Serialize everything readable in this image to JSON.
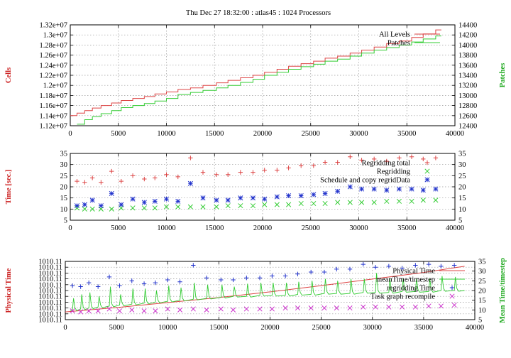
{
  "title": "Thu Dec 27 18:32:00 : atlas45 : 1024 Processors",
  "colors": {
    "red": "#dd4444",
    "green": "#33cc33",
    "blue": "#2233cc",
    "magenta": "#cc33cc",
    "grid": "#9a9a9a",
    "red_label": "#cc2222",
    "green_label": "#22aa22"
  },
  "chart_data": [
    {
      "type": "line",
      "xlabel": "",
      "ylabel_left": "Cells",
      "ylabel_right": "Patches",
      "xlim": [
        0,
        40000
      ],
      "ylim_left": [
        11200000,
        13200000
      ],
      "ylim_right": [
        12400,
        14400
      ],
      "grid": true,
      "legend_position": "top-right",
      "x_ticks": [
        "0",
        "5000",
        "10000",
        "15000",
        "20000",
        "25000",
        "30000",
        "35000",
        "40000"
      ],
      "y_ticks_left": [
        "1.12e+07",
        "1.14e+07",
        "1.16e+07",
        "1.18e+07",
        "1.2e+07",
        "1.22e+07",
        "1.24e+07",
        "1.26e+07",
        "1.28e+07",
        "1.3e+07",
        "1.32e+07"
      ],
      "y_ticks_right": [
        "12400",
        "12600",
        "12800",
        "13000",
        "13200",
        "13400",
        "13600",
        "13800",
        "14000",
        "14200",
        "14400"
      ],
      "series": [
        {
          "name": "All Levels",
          "axis": "left",
          "color": "red",
          "style": "step",
          "x": [
            0,
            700,
            1500,
            2300,
            3200,
            4300,
            5300,
            6500,
            7700,
            8800,
            10000,
            11200,
            12500,
            13800,
            15200,
            16400,
            17700,
            19000,
            20200,
            21500,
            22700,
            24000,
            25300,
            26500,
            27800,
            29100,
            30300,
            31600,
            32900,
            34200,
            35500,
            36700,
            38000
          ],
          "y": [
            11400000,
            11450000,
            11500000,
            11550000,
            11600000,
            11650000,
            11700000,
            11740000,
            11780000,
            11830000,
            11870000,
            11920000,
            11950000,
            12000000,
            12050000,
            12100000,
            12150000,
            12200000,
            12260000,
            12320000,
            12380000,
            12430000,
            12480000,
            12540000,
            12580000,
            12640000,
            12700000,
            12760000,
            12830000,
            12880000,
            12950000,
            13020000,
            13100000
          ]
        },
        {
          "name": "Patches",
          "axis": "right",
          "color": "green",
          "style": "step",
          "x": [
            700,
            1500,
            2300,
            3200,
            4300,
            5300,
            6500,
            7700,
            8800,
            10000,
            11200,
            12500,
            13800,
            15200,
            16400,
            17700,
            19000,
            20200,
            21500,
            22700,
            24000,
            25300,
            26500,
            27800,
            29100,
            30300,
            31600,
            32900,
            34200,
            35500,
            36700,
            38000
          ],
          "y": [
            12430,
            12520,
            12580,
            12640,
            12700,
            12760,
            12800,
            12840,
            12890,
            12940,
            13020,
            13060,
            13100,
            13150,
            13200,
            13260,
            13320,
            13400,
            13460,
            13520,
            13570,
            13620,
            13680,
            13720,
            13780,
            13840,
            13900,
            13950,
            14000,
            14060,
            14120,
            14180
          ]
        }
      ]
    },
    {
      "type": "scatter",
      "xlabel": "",
      "ylabel_left": "Time [sec.]",
      "xlim": [
        0,
        40000
      ],
      "ylim_left": [
        5,
        35
      ],
      "ylim_right": [
        5,
        35
      ],
      "grid": true,
      "legend_position": "top-right",
      "x_ticks": [
        "0",
        "5000",
        "10000",
        "15000",
        "20000",
        "25000",
        "30000",
        "35000",
        "40000"
      ],
      "y_ticks_left": [
        "5",
        "10",
        "15",
        "20",
        "25",
        "30",
        "35"
      ],
      "y_ticks_right": [
        "5",
        "10",
        "15",
        "20",
        "25",
        "30",
        "35"
      ],
      "series": [
        {
          "name": "Regridding total",
          "color": "red",
          "marker": "plus",
          "x": [
            700,
            1500,
            2300,
            3200,
            4300,
            5300,
            6500,
            7700,
            8800,
            10000,
            11200,
            12500,
            13800,
            15200,
            16400,
            17700,
            19000,
            20200,
            21500,
            22700,
            24000,
            25300,
            26500,
            27800,
            29100,
            30300,
            31600,
            32900,
            34200,
            35500,
            36700,
            38000
          ],
          "y": [
            22.5,
            22.0,
            24.0,
            22.0,
            27.0,
            22.5,
            25.0,
            23.5,
            24.0,
            25.5,
            24.5,
            33.0,
            26.5,
            25.5,
            25.5,
            26.5,
            26.5,
            27.5,
            27.5,
            28.5,
            29.5,
            29.5,
            31.0,
            31.0,
            33.5,
            32.0,
            32.5,
            31.5,
            33.0,
            33.5,
            32.5,
            33.0
          ]
        },
        {
          "name": "Regridding",
          "color": "green",
          "marker": "cross",
          "x": [
            700,
            1500,
            2300,
            3200,
            4300,
            5300,
            6500,
            7700,
            8800,
            10000,
            11200,
            12500,
            13800,
            15200,
            16400,
            17700,
            19000,
            20200,
            21500,
            22700,
            24000,
            25300,
            26500,
            27800,
            29100,
            30300,
            31600,
            32900,
            34200,
            35500,
            36700,
            38000
          ],
          "y": [
            10.5,
            10.0,
            10.0,
            10.0,
            10.0,
            10.5,
            10.5,
            10.5,
            10.5,
            11.0,
            11.0,
            11.0,
            11.0,
            11.0,
            11.5,
            11.5,
            11.5,
            12.0,
            12.0,
            12.0,
            12.5,
            12.5,
            12.5,
            13.0,
            13.0,
            13.0,
            13.0,
            13.5,
            13.5,
            13.5,
            14.0,
            14.0
          ]
        },
        {
          "name": "Schedule and copy regridData",
          "color": "blue",
          "marker": "star",
          "x": [
            700,
            1500,
            2300,
            3200,
            4300,
            5300,
            6500,
            7700,
            8800,
            10000,
            11200,
            12500,
            13800,
            15200,
            16400,
            17700,
            19000,
            20200,
            21500,
            22700,
            24000,
            25300,
            26500,
            27800,
            29100,
            30300,
            31600,
            32900,
            34200,
            35500,
            36700,
            38000
          ],
          "y": [
            11.5,
            12.0,
            14.0,
            11.5,
            17.0,
            12.0,
            14.5,
            13.0,
            13.5,
            14.5,
            13.5,
            21.5,
            15.0,
            14.0,
            14.0,
            15.0,
            15.0,
            14.5,
            15.5,
            16.0,
            16.0,
            16.5,
            17.0,
            18.0,
            20.0,
            19.0,
            19.0,
            18.5,
            19.0,
            19.0,
            18.5,
            19.0
          ]
        }
      ]
    },
    {
      "type": "line",
      "xlabel": "",
      "ylabel_left": "Physical Time",
      "ylabel_right": "Mean Time/timestep",
      "xlim": [
        0,
        40000
      ],
      "ylim_right": [
        5,
        35
      ],
      "grid": true,
      "legend_position": "top-right",
      "x_ticks": [
        "0",
        "5000",
        "10000",
        "15000",
        "20000",
        "25000",
        "30000",
        "35000",
        "40000"
      ],
      "y_ticks_left": [
        "1010.11",
        "1010.11",
        "1010.11",
        "1010.11",
        "1010.11",
        "1010.11",
        "1010.11",
        "1010.11",
        "1010.11",
        "1010.11",
        "1010.11"
      ],
      "y_ticks_right": [
        "5",
        "10",
        "15",
        "20",
        "25",
        "30",
        "35"
      ],
      "series": [
        {
          "name": "Physical Time",
          "color": "red",
          "style": "line",
          "x": [
            0,
            5000,
            10000,
            15000,
            20000,
            25000,
            30000,
            35000,
            39000
          ],
          "y": [
            9.0,
            11.2,
            13.8,
            16.4,
            19.3,
            22.5,
            25.9,
            29.3,
            32.5
          ]
        },
        {
          "name": "meanTime/timestep",
          "color": "green",
          "style": "spiky-line",
          "x": [
            500,
            700,
            1500,
            2300,
            3200,
            4300,
            5300,
            6500,
            7700,
            8800,
            10000,
            11200,
            12500,
            13800,
            15200,
            16400,
            17700,
            19000,
            20200,
            21500,
            22700,
            24000,
            25300,
            26500,
            27800,
            29100,
            30300,
            31600,
            32900,
            34200,
            35500,
            36700,
            38000,
            39000
          ],
          "y": [
            9.5,
            10.0,
            10.5,
            11.0,
            11.5,
            12.0,
            12.5,
            13.0,
            13.5,
            14.0,
            14.5,
            15.0,
            15.5,
            16.0,
            16.5,
            17.0,
            17.0,
            17.5,
            17.5,
            17.5,
            18.0,
            18.0,
            18.5,
            18.5,
            18.5,
            19.0,
            19.0,
            19.0,
            19.5,
            19.5,
            19.5,
            20.0,
            20.0,
            20.0
          ],
          "peaks": [
            16.0,
            18.0,
            19.0,
            17.0,
            22.0,
            18.0,
            21.0,
            21.0,
            20.0,
            22.5,
            21.5,
            24.0,
            23.0,
            23.0,
            22.0,
            23.5,
            24.0,
            24.0,
            24.0,
            24.5,
            25.0,
            26.0,
            25.0,
            26.0,
            26.0,
            29.0,
            26.0,
            26.0,
            26.0,
            26.0,
            27.5,
            27.0
          ]
        },
        {
          "name": "regridding Time",
          "color": "blue",
          "marker": "plus",
          "x": [
            700,
            1500,
            2300,
            3200,
            4300,
            5300,
            6500,
            7700,
            8800,
            10000,
            11200,
            12500,
            13800,
            15200,
            16400,
            17700,
            19000,
            20200,
            21500,
            22700,
            24000,
            25300,
            26500,
            27800,
            29100,
            30300,
            31600,
            32900,
            34200,
            35500,
            36700,
            38000
          ],
          "y": [
            22.5,
            22.0,
            24.0,
            22.0,
            27.0,
            22.5,
            25.0,
            23.5,
            24.0,
            25.5,
            24.5,
            33.0,
            26.5,
            25.5,
            25.5,
            26.5,
            26.5,
            27.5,
            27.5,
            28.5,
            29.5,
            29.5,
            31.0,
            31.0,
            33.5,
            32.0,
            32.5,
            31.5,
            33.0,
            33.5,
            32.5,
            33.0
          ]
        },
        {
          "name": "Task graph recompile",
          "color": "magenta",
          "marker": "cross",
          "x": [
            700,
            1500,
            2300,
            3200,
            4300,
            5300,
            6500,
            7700,
            8800,
            10000,
            11200,
            12500,
            13800,
            15200,
            16400,
            17700,
            19000,
            20200,
            21500,
            22700,
            24000,
            25300,
            26500,
            27800,
            29100,
            30300,
            31600,
            32900,
            34200,
            35500,
            36700,
            38000
          ],
          "y": [
            9.5,
            9.0,
            9.5,
            9.5,
            10.5,
            9.5,
            10.0,
            9.5,
            9.5,
            10.5,
            10.0,
            10.5,
            10.0,
            10.5,
            10.0,
            10.5,
            10.5,
            10.5,
            11.0,
            11.0,
            11.0,
            11.0,
            11.0,
            11.0,
            11.5,
            11.5,
            11.5,
            11.5,
            11.5,
            12.0,
            12.0,
            12.5
          ]
        }
      ]
    }
  ]
}
